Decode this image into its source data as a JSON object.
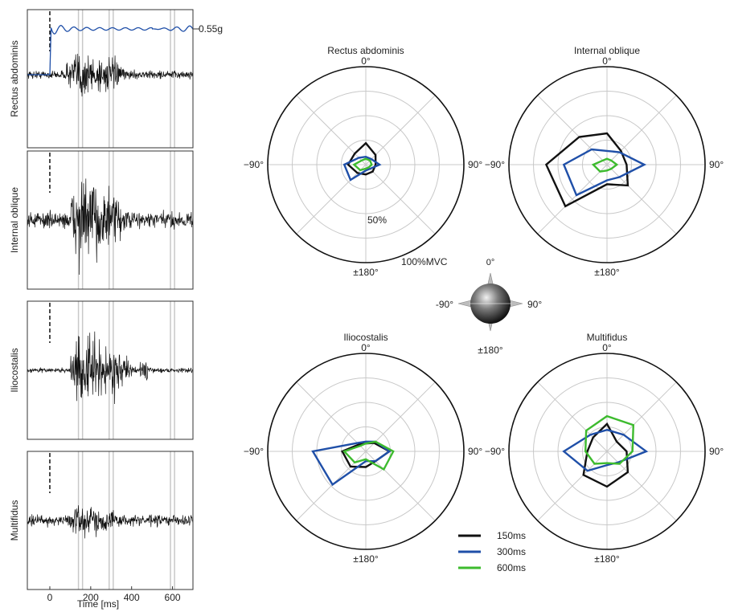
{
  "colors": {
    "c150": "#111111",
    "c300": "#1f4fa8",
    "c600": "#3dbb2e",
    "grid": "#c8c8c8",
    "accel": "#1f4fa8"
  },
  "emg": {
    "xlabel": "Time [ms]",
    "xlim": [
      -110,
      700
    ],
    "xticks": [
      "0",
      "200",
      "400",
      "600"
    ],
    "tick_values": [
      0,
      200,
      400,
      600
    ],
    "onset_ms": 0,
    "window_lines_ms": [
      140,
      160,
      290,
      310,
      590,
      610
    ],
    "accel_label": "0.55g",
    "panels": [
      {
        "label": "Rectus abdominis",
        "burst_ms": 100,
        "amp": 0.75,
        "baseline": 0.12
      },
      {
        "label": "Internal oblique",
        "burst_ms": 110,
        "amp": 0.95,
        "baseline": 0.18
      },
      {
        "label": "Iliocostalis",
        "burst_ms": 120,
        "amp": 0.8,
        "baseline": 0.05
      },
      {
        "label": "Multifidus",
        "burst_ms": 100,
        "amp": 0.35,
        "baseline": 0.12
      }
    ]
  },
  "chart_data": {
    "type": "radar",
    "ring_labels": [
      "50%",
      "100%MVC"
    ],
    "angle_labels": [
      "0°",
      "90°",
      "±180°",
      "−90°"
    ],
    "legend": [
      "150ms",
      "300ms",
      "600ms"
    ],
    "legend_placement": "bottom-right",
    "angles_deg": [
      0,
      45,
      90,
      135,
      180,
      -135,
      -90,
      -45
    ],
    "max_pct": 100,
    "panels": [
      {
        "title": "Rectus abdominis",
        "series": [
          {
            "name": "150ms",
            "values": [
              22,
              14,
              10,
              10,
              10,
              12,
              18,
              16
            ]
          },
          {
            "name": "300ms",
            "values": [
              8,
              8,
              14,
              6,
              6,
              22,
              22,
              10
            ]
          },
          {
            "name": "600ms",
            "values": [
              6,
              6,
              6,
              4,
              4,
              8,
              12,
              6
            ]
          }
        ]
      },
      {
        "title": "Internal oblique",
        "series": [
          {
            "name": "150ms",
            "values": [
              32,
              20,
              20,
              30,
              20,
              60,
              62,
              40
            ]
          },
          {
            "name": "300ms",
            "values": [
              14,
              18,
              38,
              18,
              16,
              44,
              44,
              22
            ]
          },
          {
            "name": "600ms",
            "values": [
              6,
              6,
              10,
              6,
              6,
              10,
              14,
              6
            ]
          }
        ]
      },
      {
        "title": "Iliocostalis",
        "series": [
          {
            "name": "150ms",
            "values": [
              8,
              12,
              24,
              14,
              16,
              22,
              24,
              10
            ]
          },
          {
            "name": "300ms",
            "values": [
              10,
              14,
              24,
              14,
              10,
              48,
              54,
              12
            ]
          },
          {
            "name": "600ms",
            "values": [
              8,
              14,
              28,
              26,
              8,
              16,
              22,
              8
            ]
          }
        ]
      },
      {
        "title": "Multifidus",
        "series": [
          {
            "name": "150ms",
            "values": [
              28,
              14,
              20,
              30,
              36,
              34,
              20,
              20
            ]
          },
          {
            "name": "300ms",
            "values": [
              22,
              24,
              40,
              16,
              14,
              28,
              44,
              24
            ]
          },
          {
            "name": "600ms",
            "values": [
              36,
              38,
              26,
              18,
              12,
              18,
              22,
              30
            ]
          }
        ]
      }
    ]
  },
  "orientation": {
    "labels": [
      "0°",
      "90°",
      "±180°",
      "-90°"
    ]
  }
}
